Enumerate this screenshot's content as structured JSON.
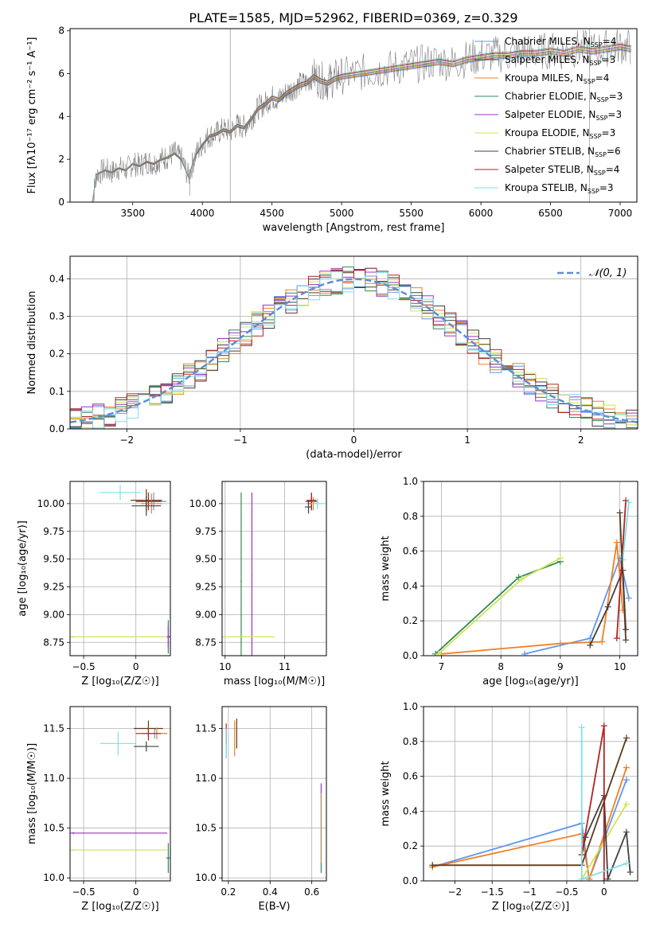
{
  "figure": {
    "title": "PLATE=1585, MJD=52962, FIBERID=0369, z=0.329",
    "series_colors": [
      "#6495ed",
      "#5a3b1f",
      "#f08020",
      "#2e8b57",
      "#9932cc",
      "#d4e157",
      "#404040",
      "#b22222",
      "#80deea"
    ],
    "series_colors_note": ""
  },
  "chart_data": [
    {
      "id": "spectrum",
      "type": "line",
      "xlabel": "wavelength [Angstrom, rest frame]",
      "ylabel": "Flux [fλ10⁻¹⁷ erg cm⁻² s⁻¹ A⁻¹]",
      "xlim": [
        3050,
        7120
      ],
      "ylim": [
        0,
        8.1
      ],
      "xticks": [
        3500,
        4000,
        4500,
        5000,
        5500,
        6000,
        6500,
        7000
      ],
      "yticks": [
        0,
        2,
        4,
        6,
        8
      ],
      "data_series": {
        "name": "",
        "color": "#808080",
        "x": [
          3210,
          3240,
          3300,
          3350,
          3400,
          3450,
          3500,
          3550,
          3600,
          3650,
          3700,
          3750,
          3800,
          3850,
          3900,
          3950,
          4000,
          4050,
          4100,
          4150,
          4200,
          4250,
          4300,
          4350,
          4400,
          4450,
          4500,
          4550,
          4600,
          4650,
          4700,
          4750,
          4800,
          4850,
          4900,
          4950,
          5000,
          5100,
          5200,
          5300,
          5400,
          5500,
          5600,
          5700,
          5800,
          5900,
          6000,
          6100,
          6200,
          6300,
          6400,
          6500,
          6600,
          6700,
          6800,
          6900,
          7000,
          7080
        ],
        "y": [
          0,
          1.3,
          1.5,
          1.4,
          1.6,
          1.5,
          1.8,
          1.7,
          1.9,
          1.8,
          2.0,
          2.1,
          2.3,
          2.0,
          1.2,
          2.2,
          2.7,
          3.1,
          3.2,
          3.4,
          3.3,
          3.6,
          3.5,
          3.9,
          4.4,
          4.6,
          4.9,
          4.8,
          5.1,
          5.3,
          5.5,
          5.6,
          5.9,
          5.7,
          5.6,
          5.8,
          5.9,
          6.0,
          6.1,
          6.2,
          6.3,
          6.4,
          6.5,
          6.6,
          6.5,
          6.7,
          6.8,
          6.9,
          6.9,
          7.0,
          7.0,
          7.1,
          7.0,
          7.2,
          7.1,
          7.2,
          7.3,
          7.2
        ]
      },
      "legend": [
        {
          "label": "Chabrier MILES, N",
          "sub": "SSP",
          "value": "=4"
        },
        {
          "label": "Salpeter MILES, N",
          "sub": "SSP",
          "value": "=3"
        },
        {
          "label": "Kroupa MILES, N",
          "sub": "SSP",
          "value": "=4"
        },
        {
          "label": "Chabrier ELODIE, N",
          "sub": "SSP",
          "value": "=3"
        },
        {
          "label": "Salpeter ELODIE, N",
          "sub": "SSP",
          "value": "=3"
        },
        {
          "label": "Kroupa ELODIE, N",
          "sub": "SSP",
          "value": "=3"
        },
        {
          "label": "Chabrier STELIB, N",
          "sub": "SSP",
          "value": "=6"
        },
        {
          "label": "Salpeter STELIB, N",
          "sub": "SSP",
          "value": "=4"
        },
        {
          "label": "Kroupa STELIB, N",
          "sub": "SSP",
          "value": "=3"
        }
      ],
      "legend_placement": "top-right"
    },
    {
      "id": "residuals",
      "type": "line",
      "xlabel": "(data-model)/error",
      "ylabel": "Normed distribution",
      "xlim": [
        -2.5,
        2.5
      ],
      "ylim": [
        0,
        0.46
      ],
      "xticks": [
        -2,
        -1,
        0,
        1,
        2
      ],
      "yticks": [
        0.0,
        0.1,
        0.2,
        0.3,
        0.4
      ],
      "grid": true,
      "reference": {
        "label": "𝒩(0, 1)",
        "color": "#5b8fd6",
        "mean": 0,
        "sigma": 1
      },
      "bin_width": 0.1,
      "legend_placement": "top-right"
    },
    {
      "id": "age_vs_Z",
      "type": "scatter",
      "xlabel": "Z [log₁₀(Z/Z☉)]",
      "ylabel": "age  [log₁₀(age/yr)]",
      "xlim": [
        -0.63,
        0.33
      ],
      "ylim": [
        8.63,
        10.2
      ],
      "xticks": [
        -0.5,
        0.0
      ],
      "yticks": [
        8.75,
        9.0,
        9.25,
        9.5,
        9.75,
        10.0
      ],
      "grid": true,
      "points": [
        {
          "s": 0,
          "x": 0.17,
          "y": 10.02,
          "xerr": 0.12,
          "yerr": 0.08
        },
        {
          "s": 1,
          "x": 0.1,
          "y": 10.03,
          "xerr": 0.15,
          "yerr": 0.1
        },
        {
          "s": 2,
          "x": 0.15,
          "y": 10.0,
          "xerr": 0.1,
          "yerr": 0.09
        },
        {
          "s": 3,
          "x": 0.31,
          "y": 8.8,
          "xerr": 0.02,
          "yerr": 0.15
        },
        {
          "s": 4,
          "x": 0.31,
          "y": 8.8,
          "xerr": 0.02,
          "yerr": 0.1
        },
        {
          "s": 5,
          "x": -0.6,
          "y": 8.8,
          "xerr": 0.9,
          "yerr": 0.01
        },
        {
          "s": 6,
          "x": 0.1,
          "y": 9.98,
          "xerr": 0.14,
          "yerr": 0.09
        },
        {
          "s": 7,
          "x": 0.12,
          "y": 10.02,
          "xerr": 0.12,
          "yerr": 0.08
        },
        {
          "s": 8,
          "x": -0.15,
          "y": 10.1,
          "xerr": 0.2,
          "yerr": 0.07
        }
      ]
    },
    {
      "id": "age_vs_mass",
      "type": "scatter",
      "xlabel": "mass [log₁₀(M/M☉)]",
      "ylabel": "",
      "xlim": [
        9.95,
        11.7
      ],
      "ylim": [
        8.63,
        10.2
      ],
      "xticks": [
        10,
        11
      ],
      "yticks": [
        8.75,
        9.0,
        9.25,
        9.5,
        9.75,
        10.0
      ],
      "grid": true,
      "points": [
        {
          "s": 0,
          "x": 11.45,
          "y": 10.0,
          "xerr": 0.08,
          "yerr": 0.06
        },
        {
          "s": 1,
          "x": 11.45,
          "y": 10.02,
          "xerr": 0.1,
          "yerr": 0.08
        },
        {
          "s": 2,
          "x": 11.48,
          "y": 10.0,
          "xerr": 0.08,
          "yerr": 0.06
        },
        {
          "s": 3,
          "x": 10.27,
          "y": 9.3,
          "xerr": 0.01,
          "yerr": 0.8
        },
        {
          "s": 4,
          "x": 10.45,
          "y": 9.35,
          "xerr": 0.01,
          "yerr": 0.75
        },
        {
          "s": 5,
          "x": 10.28,
          "y": 8.8,
          "xerr": 0.55,
          "yerr": 0.01
        },
        {
          "s": 6,
          "x": 11.4,
          "y": 9.97,
          "xerr": 0.06,
          "yerr": 0.06
        },
        {
          "s": 7,
          "x": 11.45,
          "y": 10.03,
          "xerr": 0.08,
          "yerr": 0.06
        },
        {
          "s": 8,
          "x": 11.55,
          "y": 10.0,
          "xerr": 0.1,
          "yerr": 0.05
        }
      ]
    },
    {
      "id": "weight_vs_age",
      "type": "line",
      "xlabel": "age  [log₁₀(age/yr)]",
      "ylabel": "mass weight",
      "xlim": [
        6.7,
        10.3
      ],
      "ylim": [
        0,
        1.0
      ],
      "xticks": [
        7,
        8,
        9,
        10
      ],
      "yticks": [
        0.0,
        0.2,
        0.4,
        0.6,
        0.8,
        1.0
      ],
      "grid": true,
      "series": [
        {
          "s": 0,
          "x": [
            8.4,
            9.5,
            10.0,
            10.15
          ],
          "y": [
            0.01,
            0.1,
            0.56,
            0.33
          ]
        },
        {
          "s": 2,
          "x": [
            7.0,
            9.0,
            9.7,
            9.95,
            10.05
          ],
          "y": [
            0.01,
            0.07,
            0.08,
            0.65,
            0.26
          ]
        },
        {
          "s": 3,
          "x": [
            6.9,
            8.3,
            9.0
          ],
          "y": [
            0.01,
            0.45,
            0.54
          ]
        },
        {
          "s": 5,
          "x": [
            6.95,
            8.35,
            9.0
          ],
          "y": [
            0.01,
            0.44,
            0.56
          ]
        },
        {
          "s": 6,
          "x": [
            9.5,
            9.8,
            10.05,
            10.1
          ],
          "y": [
            0.06,
            0.28,
            0.49,
            0.15
          ]
        },
        {
          "s": 7,
          "x": [
            9.95,
            10.1
          ],
          "y": [
            0.1,
            0.89
          ]
        },
        {
          "s": 8,
          "x": [
            10.05,
            10.15
          ],
          "y": [
            0.55,
            0.88
          ]
        },
        {
          "s": 1,
          "x": [
            10.0,
            10.1
          ],
          "y": [
            0.82,
            0.09
          ]
        }
      ]
    },
    {
      "id": "mass_vs_Z",
      "type": "scatter",
      "xlabel": "Z [log₁₀(Z/Z☉)]",
      "ylabel": "mass [log₁₀(M/M☉)]",
      "xlim": [
        -0.63,
        0.33
      ],
      "ylim": [
        9.97,
        11.72
      ],
      "xticks": [
        -0.5,
        0.0
      ],
      "yticks": [
        10.0,
        10.5,
        11.0,
        11.5
      ],
      "grid": true,
      "points": [
        {
          "s": 0,
          "x": 0.18,
          "y": 11.45,
          "xerr": 0.12,
          "yerr": 0.05
        },
        {
          "s": 1,
          "x": 0.12,
          "y": 11.5,
          "xerr": 0.14,
          "yerr": 0.08
        },
        {
          "s": 2,
          "x": 0.2,
          "y": 11.45,
          "xerr": 0.1,
          "yerr": 0.06
        },
        {
          "s": 3,
          "x": 0.31,
          "y": 10.2,
          "xerr": 0.02,
          "yerr": 0.15
        },
        {
          "s": 4,
          "x": -0.6,
          "y": 10.45,
          "xerr": 0.9,
          "yerr": 0.01
        },
        {
          "s": 5,
          "x": -0.6,
          "y": 10.28,
          "xerr": 0.9,
          "yerr": 0.01
        },
        {
          "s": 6,
          "x": 0.1,
          "y": 11.32,
          "xerr": 0.12,
          "yerr": 0.05
        },
        {
          "s": 7,
          "x": 0.12,
          "y": 11.45,
          "xerr": 0.12,
          "yerr": 0.07
        },
        {
          "s": 8,
          "x": -0.17,
          "y": 11.35,
          "xerr": 0.17,
          "yerr": 0.12
        }
      ]
    },
    {
      "id": "mass_vs_ebv",
      "type": "scatter",
      "xlabel": "E(B-V)",
      "ylabel": "",
      "xlim": [
        0.17,
        0.67
      ],
      "ylim": [
        9.97,
        11.72
      ],
      "xticks": [
        0.2,
        0.4,
        0.6
      ],
      "yticks": [
        10.0,
        10.5,
        11.0,
        11.5
      ],
      "grid": true,
      "points": [
        {
          "s": 0,
          "x": 0.19,
          "y": 11.35,
          "xerr": 0.0,
          "yerr": 0.15
        },
        {
          "s": 1,
          "x": 0.24,
          "y": 11.45,
          "xerr": 0.0,
          "yerr": 0.15
        },
        {
          "s": 2,
          "x": 0.23,
          "y": 11.4,
          "xerr": 0.0,
          "yerr": 0.18
        },
        {
          "s": 3,
          "x": 0.645,
          "y": 10.45,
          "xerr": 0.0,
          "yerr": 0.4
        },
        {
          "s": 4,
          "x": 0.645,
          "y": 10.55,
          "xerr": 0.0,
          "yerr": 0.4
        },
        {
          "s": 5,
          "x": 0.643,
          "y": 10.5,
          "xerr": 0.0,
          "yerr": 0.35
        },
        {
          "s": 7,
          "x": 0.19,
          "y": 11.45,
          "xerr": 0.0,
          "yerr": 0.1
        },
        {
          "s": 8,
          "x": 0.19,
          "y": 11.35,
          "xerr": 0.0,
          "yerr": 0.15
        }
      ]
    },
    {
      "id": "weight_vs_Z",
      "type": "line",
      "xlabel": "Z [log₁₀(Z/Z☉)]",
      "ylabel": "mass weight",
      "xlim": [
        -2.42,
        0.45
      ],
      "ylim": [
        0,
        1.0
      ],
      "xticks": [
        -2.0,
        -1.5,
        -1.0,
        -0.5,
        0.0
      ],
      "yticks": [
        0.0,
        0.2,
        0.4,
        0.6,
        0.8,
        1.0
      ],
      "grid": true,
      "series": [
        {
          "s": 0,
          "x": [
            -2.3,
            -0.3,
            -0.2,
            0.3
          ],
          "y": [
            0.08,
            0.33,
            0.01,
            0.58
          ]
        },
        {
          "s": 2,
          "x": [
            -2.3,
            -0.3,
            -0.2,
            0.3
          ],
          "y": [
            0.08,
            0.27,
            0.01,
            0.65
          ]
        },
        {
          "s": 1,
          "x": [
            -2.3,
            -0.3,
            0.3
          ],
          "y": [
            0.09,
            0.09,
            0.82
          ]
        },
        {
          "s": 5,
          "x": [
            -0.3,
            0.3
          ],
          "y": [
            0.01,
            0.44
          ]
        },
        {
          "s": 6,
          "x": [
            -0.3,
            -0.25,
            0.0,
            0.05,
            0.3,
            0.35
          ],
          "y": [
            0.15,
            0.25,
            0.49,
            0.01,
            0.28,
            0.05
          ]
        },
        {
          "s": 7,
          "x": [
            -0.3,
            0.0,
            0.0
          ],
          "y": [
            0.15,
            0.89,
            0.0
          ]
        },
        {
          "s": 8,
          "x": [
            -0.3,
            -0.3,
            0.3
          ],
          "y": [
            0.88,
            0.01,
            0.1
          ]
        }
      ]
    }
  ]
}
